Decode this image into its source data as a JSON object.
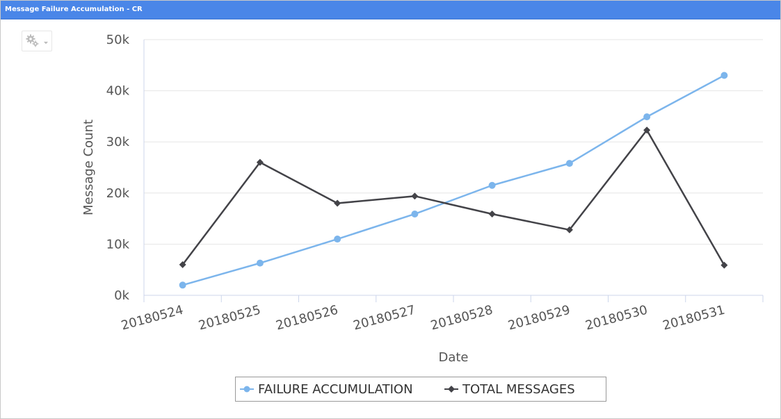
{
  "window": {
    "title": "Message Failure Accumulation - CR"
  },
  "toolbar": {
    "gear_icon": "gear-icon",
    "menu_icon": "chevron-down-icon"
  },
  "chart_data": {
    "type": "line",
    "xlabel": "Date",
    "ylabel": "Message Count",
    "categories": [
      "20180524",
      "20180525",
      "20180526",
      "20180527",
      "20180528",
      "20180529",
      "20180530",
      "20180531"
    ],
    "ylim": [
      0,
      50000
    ],
    "yticks": [
      0,
      10000,
      20000,
      30000,
      40000,
      50000
    ],
    "ytick_labels": [
      "0k",
      "10k",
      "20k",
      "30k",
      "40k",
      "50k"
    ],
    "grid": true,
    "legend_position": "bottom-center",
    "series": [
      {
        "name": "FAILURE ACCUMULATION",
        "color": "#7cb5ec",
        "marker": "circle",
        "values": [
          2000,
          6300,
          11000,
          15900,
          21500,
          25800,
          34900,
          43000
        ]
      },
      {
        "name": "TOTAL MESSAGES",
        "color": "#434348",
        "marker": "diamond",
        "values": [
          6000,
          26000,
          18000,
          19400,
          15900,
          12800,
          32300,
          5900
        ]
      }
    ]
  }
}
